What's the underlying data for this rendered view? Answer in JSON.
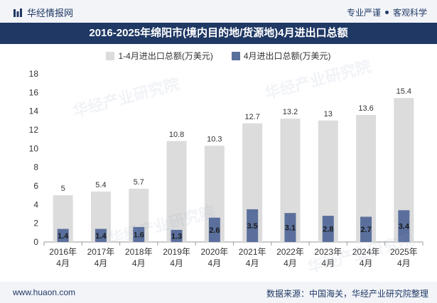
{
  "header": {
    "brand": "华经情报网",
    "slogan_left": "专业严谨",
    "slogan_right": "客观科学",
    "logo_icon": "bar-logo-icon"
  },
  "title": "2016-2025年绵阳市(境内目的地/货源地)4月进出口总额",
  "footer": {
    "site": "www.huaon.com",
    "source": "数据来源：中国海关，华经产业研究院整理"
  },
  "watermark": "华经产业研究院",
  "colors": {
    "total": "#dcdcdc",
    "april": "#5a6f9c",
    "header_bg": "#1f3864"
  },
  "chart_data": {
    "type": "bar",
    "categories": [
      "2016年\n4月",
      "2017年\n4月",
      "2018年\n4月",
      "2019年\n4月",
      "2020年\n4月",
      "2021年\n4月",
      "2022年\n4月",
      "2023年\n4月",
      "2024年\n4月",
      "2025年\n4月"
    ],
    "series": [
      {
        "name": "1-4月进出口总额(万美元)",
        "values": [
          5,
          5.4,
          5.7,
          10.8,
          10.3,
          12.7,
          13.2,
          13,
          13.6,
          15.4
        ]
      },
      {
        "name": "4月进出口总额(万美元)",
        "values": [
          1.4,
          1.4,
          1.6,
          1.3,
          2.6,
          3.5,
          3.1,
          2.8,
          2.7,
          3.4
        ]
      }
    ],
    "ylim": [
      0,
      18
    ],
    "yticks": [
      0,
      2,
      4,
      6,
      8,
      10,
      12,
      14,
      16,
      18
    ],
    "overlapped": true,
    "legend": "top-center"
  }
}
